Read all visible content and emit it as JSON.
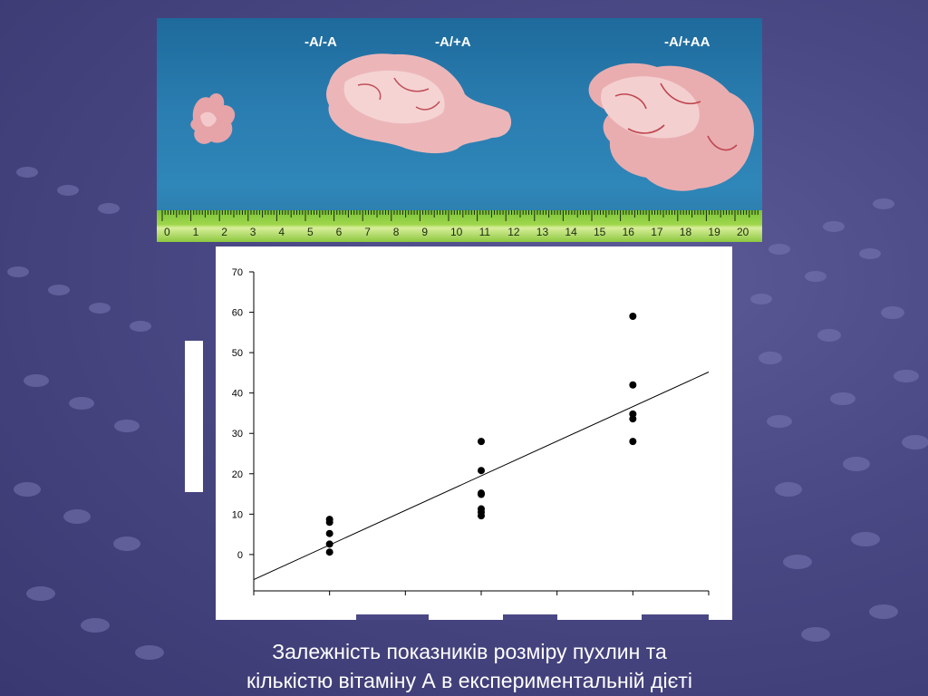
{
  "photo": {
    "labels": [
      "-A/-A",
      "-A/+A",
      "-A/+AA"
    ],
    "ruler_numbers": [
      "0",
      "1",
      "2",
      "3",
      "4",
      "5",
      "6",
      "7",
      "8",
      "9",
      "10",
      "11",
      "12",
      "13",
      "14",
      "15",
      "16",
      "17",
      "18",
      "19",
      "20",
      "2"
    ]
  },
  "chart_data": {
    "type": "scatter",
    "xlabel": "",
    "ylabel": "",
    "ylim": [
      -9,
      70
    ],
    "yticks": [
      0,
      10,
      20,
      30,
      40,
      50,
      60,
      70
    ],
    "xlim": [
      0,
      3
    ],
    "grid": false,
    "series": [
      {
        "points": [
          {
            "x": 0.5,
            "y": 8.7
          },
          {
            "x": 0.5,
            "y": 8.0
          },
          {
            "x": 0.5,
            "y": 5.2
          },
          {
            "x": 0.5,
            "y": 2.6
          },
          {
            "x": 0.5,
            "y": 0.6
          },
          {
            "x": 1.5,
            "y": 28.0
          },
          {
            "x": 1.5,
            "y": 20.8
          },
          {
            "x": 1.5,
            "y": 15.2
          },
          {
            "x": 1.5,
            "y": 14.9
          },
          {
            "x": 1.5,
            "y": 11.3
          },
          {
            "x": 1.5,
            "y": 10.5
          },
          {
            "x": 1.5,
            "y": 9.6
          },
          {
            "x": 2.5,
            "y": 59.0
          },
          {
            "x": 2.5,
            "y": 42.0
          },
          {
            "x": 2.5,
            "y": 34.8
          },
          {
            "x": 2.5,
            "y": 33.6
          },
          {
            "x": 2.5,
            "y": 28.0
          }
        ]
      }
    ],
    "trendline": {
      "x": [
        0,
        3
      ],
      "y": [
        -6.2,
        45.2
      ]
    }
  },
  "caption": {
    "line1": "Залежність показників розміру пухлин та",
    "line2": "кількістю вітаміну А в експериментальній дієті"
  }
}
